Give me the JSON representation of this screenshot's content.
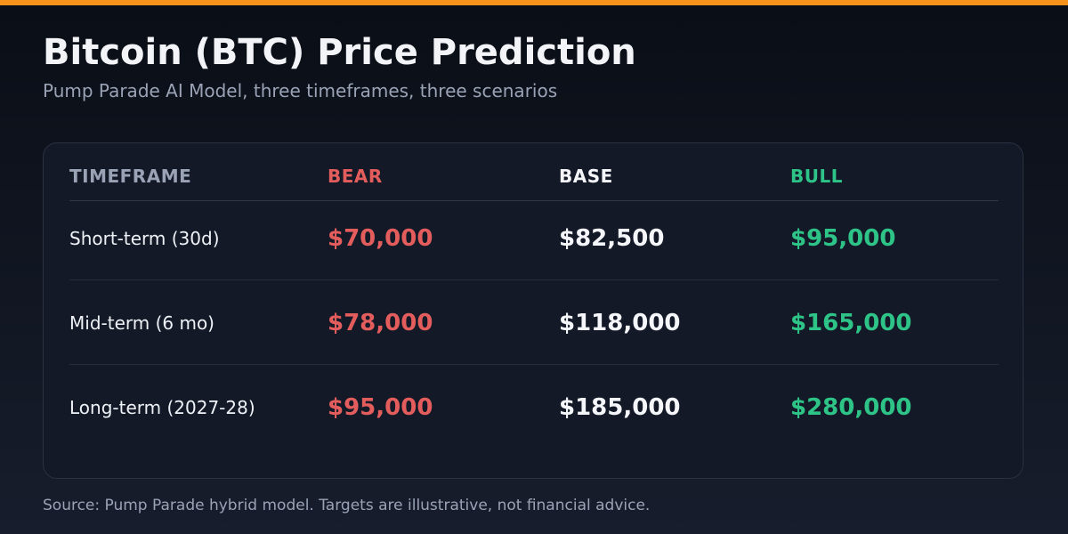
{
  "header": {
    "title": "Bitcoin (BTC) Price Prediction",
    "subtitle": "Pump Parade AI Model, three timeframes, three scenarios"
  },
  "table": {
    "columns": [
      "TIMEFRAME",
      "BEAR",
      "BASE",
      "BULL"
    ],
    "rows": [
      [
        "Short-term (30d)",
        "$70,000",
        "$82,500",
        "$95,000"
      ],
      [
        "Mid-term (6 mo)",
        "$78,000",
        "$118,000",
        "$165,000"
      ],
      [
        "Long-term (2027-28)",
        "$95,000",
        "$185,000",
        "$280,000"
      ]
    ]
  },
  "footer": {
    "source": "Source: Pump Parade hybrid model. Targets are illustrative, not financial advice."
  }
}
